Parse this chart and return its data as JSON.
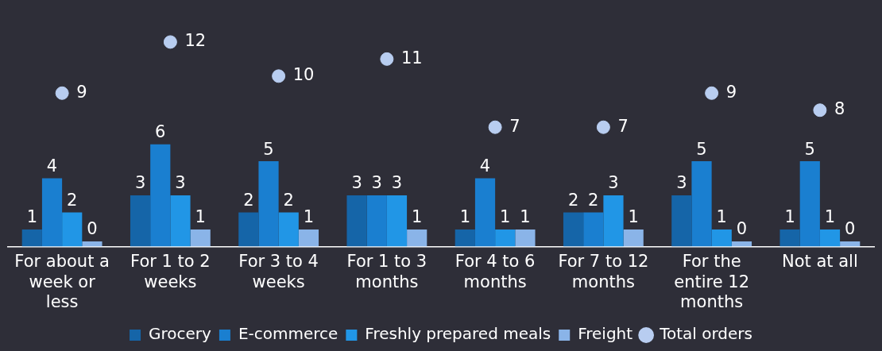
{
  "chart_data": {
    "type": "bar",
    "categories": [
      "For about a week or less",
      "For 1 to 2 weeks",
      "For 3 to 4 weeks",
      "For 1 to 3 months",
      "For 4 to 6 months",
      "For 7 to 12 months",
      "For the entire 12 months",
      "Not at all"
    ],
    "series": [
      {
        "name": "Grocery",
        "color": "#1565a8",
        "values": [
          1,
          3,
          2,
          3,
          1,
          2,
          3,
          1
        ]
      },
      {
        "name": "E-commerce",
        "color": "#1a7fd0",
        "values": [
          4,
          6,
          5,
          3,
          4,
          2,
          5,
          5
        ]
      },
      {
        "name": "Freshly prepared meals",
        "color": "#2196e6",
        "values": [
          2,
          3,
          2,
          3,
          1,
          3,
          1,
          1
        ]
      },
      {
        "name": "Freight",
        "color": "#8ab4e8",
        "values": [
          0.3,
          1,
          1,
          1,
          1,
          1,
          0.3,
          0.3
        ],
        "value_labels": [
          "0",
          "1",
          "1",
          "1",
          "1",
          "1",
          "0",
          "0"
        ]
      },
      {
        "name": "Total orders",
        "type": "scatter",
        "color": "#b8cdf0",
        "values": [
          9,
          12,
          10,
          11,
          7,
          7,
          9,
          8
        ]
      }
    ],
    "tick_labels": "x",
    "data_labels": true,
    "legend": "bottom",
    "grid": false,
    "marker": "circle"
  }
}
